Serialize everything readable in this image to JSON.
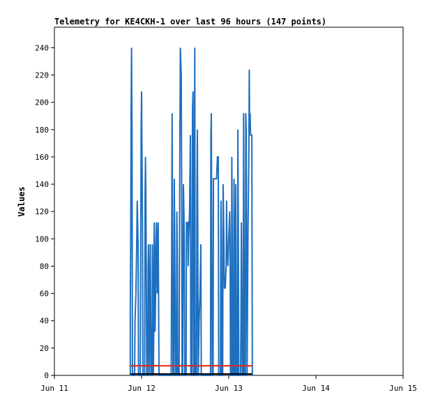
{
  "chart_data": {
    "type": "line",
    "title": "Telemetry for KE4CKH-1 over last 96 hours (147 points)",
    "xlabel": "",
    "ylabel": "Values",
    "xlim": [
      0,
      4
    ],
    "ylim": [
      0,
      255
    ],
    "x_ticks": [
      {
        "value": 0,
        "label": "Jun 11"
      },
      {
        "value": 1,
        "label": "Jun 12"
      },
      {
        "value": 2,
        "label": "Jun 13"
      },
      {
        "value": 3,
        "label": "Jun 14"
      },
      {
        "value": 4,
        "label": "Jun 15"
      }
    ],
    "y_ticks": [
      0,
      20,
      40,
      60,
      80,
      100,
      120,
      140,
      160,
      180,
      200,
      220,
      240
    ],
    "grid": false,
    "legend": "none",
    "series": [
      {
        "color": "#1f6fbf",
        "points": [
          [
            0.87,
            0
          ],
          [
            0.87,
            48
          ],
          [
            0.875,
            96
          ],
          [
            0.88,
            192
          ],
          [
            0.885,
            240
          ],
          [
            0.89,
            180
          ],
          [
            0.895,
            0
          ],
          [
            0.92,
            0
          ],
          [
            0.925,
            40
          ],
          [
            0.935,
            60
          ],
          [
            0.945,
            100
          ],
          [
            0.95,
            128
          ],
          [
            0.96,
            96
          ],
          [
            0.965,
            0
          ],
          [
            0.985,
            0
          ],
          [
            0.99,
            100
          ],
          [
            0.995,
            180
          ],
          [
            1.0,
            208
          ],
          [
            1.01,
            110
          ],
          [
            1.015,
            0
          ],
          [
            1.035,
            0
          ],
          [
            1.04,
            128
          ],
          [
            1.045,
            160
          ],
          [
            1.05,
            120
          ],
          [
            1.06,
            0
          ],
          [
            1.07,
            0
          ],
          [
            1.075,
            80
          ],
          [
            1.08,
            96
          ],
          [
            1.085,
            30
          ],
          [
            1.09,
            0
          ],
          [
            1.095,
            60
          ],
          [
            1.1,
            96
          ],
          [
            1.105,
            40
          ],
          [
            1.11,
            0
          ],
          [
            1.12,
            0
          ],
          [
            1.125,
            96
          ],
          [
            1.13,
            60
          ],
          [
            1.135,
            0
          ],
          [
            1.14,
            32
          ],
          [
            1.145,
            112
          ],
          [
            1.15,
            96
          ],
          [
            1.155,
            32
          ],
          [
            1.165,
            80
          ],
          [
            1.17,
            112
          ],
          [
            1.18,
            60
          ],
          [
            1.185,
            100
          ],
          [
            1.19,
            112
          ],
          [
            1.2,
            0
          ],
          [
            1.34,
            0
          ],
          [
            1.345,
            80
          ],
          [
            1.35,
            192
          ],
          [
            1.355,
            100
          ],
          [
            1.36,
            0
          ],
          [
            1.37,
            0
          ],
          [
            1.375,
            144
          ],
          [
            1.38,
            100
          ],
          [
            1.39,
            0
          ],
          [
            1.4,
            0
          ],
          [
            1.405,
            120
          ],
          [
            1.41,
            80
          ],
          [
            1.415,
            0
          ],
          [
            1.43,
            0
          ],
          [
            1.435,
            100
          ],
          [
            1.44,
            180
          ],
          [
            1.445,
            240
          ],
          [
            1.455,
            220
          ],
          [
            1.46,
            140
          ],
          [
            1.465,
            0
          ],
          [
            1.47,
            0
          ],
          [
            1.475,
            60
          ],
          [
            1.48,
            140
          ],
          [
            1.49,
            100
          ],
          [
            1.495,
            0
          ],
          [
            1.51,
            0
          ],
          [
            1.515,
            112
          ],
          [
            1.53,
            112
          ],
          [
            1.535,
            80
          ],
          [
            1.54,
            100
          ],
          [
            1.55,
            120
          ],
          [
            1.56,
            176
          ],
          [
            1.565,
            0
          ],
          [
            1.575,
            0
          ],
          [
            1.58,
            120
          ],
          [
            1.585,
            196
          ],
          [
            1.59,
            208
          ],
          [
            1.595,
            0
          ],
          [
            1.6,
            0
          ],
          [
            1.605,
            120
          ],
          [
            1.61,
            240
          ],
          [
            1.615,
            0
          ],
          [
            1.63,
            0
          ],
          [
            1.635,
            130
          ],
          [
            1.64,
            180
          ],
          [
            1.645,
            100
          ],
          [
            1.65,
            0
          ],
          [
            1.66,
            40
          ],
          [
            1.67,
            60
          ],
          [
            1.68,
            96
          ],
          [
            1.685,
            0
          ],
          [
            1.79,
            0
          ],
          [
            1.795,
            176
          ],
          [
            1.8,
            192
          ],
          [
            1.805,
            100
          ],
          [
            1.81,
            0
          ],
          [
            1.82,
            0
          ],
          [
            1.825,
            144
          ],
          [
            1.86,
            144
          ],
          [
            1.87,
            160
          ],
          [
            1.88,
            160
          ],
          [
            1.885,
            0
          ],
          [
            1.905,
            0
          ],
          [
            1.91,
            128
          ],
          [
            1.915,
            96
          ],
          [
            1.92,
            0
          ],
          [
            1.93,
            0
          ],
          [
            1.935,
            140
          ],
          [
            1.94,
            120
          ],
          [
            1.95,
            64
          ],
          [
            1.96,
            64
          ],
          [
            1.97,
            80
          ],
          [
            1.975,
            128
          ],
          [
            1.98,
            96
          ],
          [
            1.99,
            80
          ],
          [
            2.0,
            100
          ],
          [
            2.01,
            120
          ],
          [
            2.015,
            100
          ],
          [
            2.02,
            0
          ],
          [
            2.03,
            0
          ],
          [
            2.035,
            160
          ],
          [
            2.04,
            100
          ],
          [
            2.045,
            0
          ],
          [
            2.055,
            0
          ],
          [
            2.06,
            144
          ],
          [
            2.065,
            100
          ],
          [
            2.07,
            0
          ],
          [
            2.075,
            0
          ],
          [
            2.08,
            140
          ],
          [
            2.085,
            60
          ],
          [
            2.09,
            0
          ],
          [
            2.1,
            0
          ],
          [
            2.105,
            180
          ],
          [
            2.11,
            100
          ],
          [
            2.115,
            0
          ],
          [
            2.135,
            0
          ],
          [
            2.14,
            40
          ],
          [
            2.145,
            112
          ],
          [
            2.15,
            60
          ],
          [
            2.155,
            0
          ],
          [
            2.165,
            0
          ],
          [
            2.17,
            192
          ],
          [
            2.175,
            100
          ],
          [
            2.18,
            0
          ],
          [
            2.19,
            0
          ],
          [
            2.195,
            192
          ],
          [
            2.2,
            180
          ],
          [
            2.205,
            100
          ],
          [
            2.21,
            0
          ],
          [
            2.22,
            100
          ],
          [
            2.225,
            128
          ],
          [
            2.23,
            160
          ],
          [
            2.235,
            224
          ],
          [
            2.24,
            180
          ],
          [
            2.245,
            192
          ],
          [
            2.25,
            176
          ],
          [
            2.265,
            176
          ],
          [
            2.27,
            0
          ]
        ]
      },
      {
        "color": "#e8221a",
        "points": [
          [
            0.87,
            7
          ],
          [
            2.27,
            7
          ]
        ]
      },
      {
        "color": "#000000",
        "points": [
          [
            0.87,
            1
          ],
          [
            2.27,
            1
          ]
        ]
      }
    ]
  }
}
